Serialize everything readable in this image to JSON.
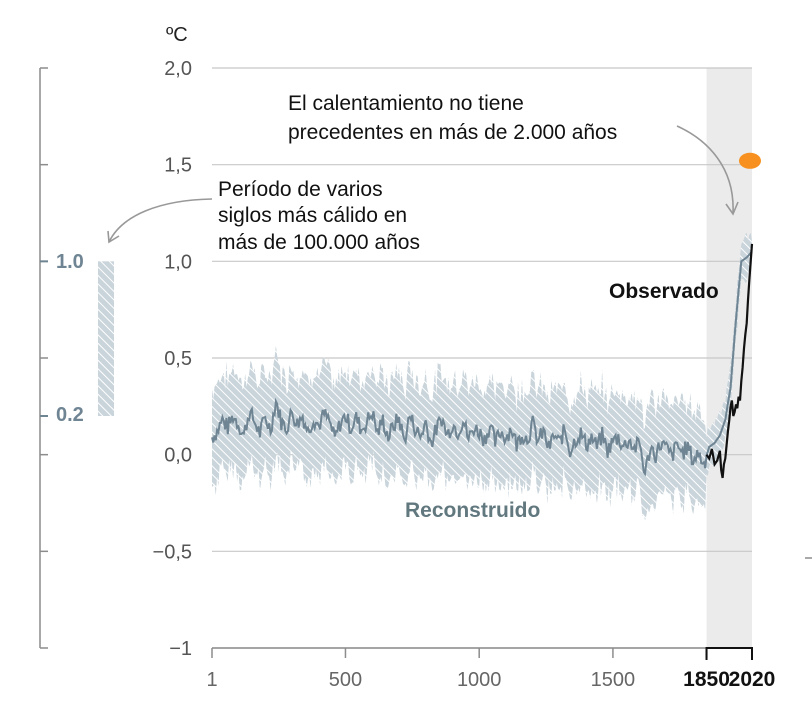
{
  "chart_data": {
    "type": "line",
    "unit": "ºC",
    "y_ticks": [
      2.0,
      1.5,
      1.0,
      0.5,
      0.0,
      -0.5,
      -1
    ],
    "y_tick_labels": [
      "2,0",
      "1,5",
      "1,0",
      "0,5",
      "0,0",
      "−0,5",
      "−1"
    ],
    "ylim": [
      -1,
      2
    ],
    "xlim": [
      1,
      2020
    ],
    "x_ticks": [
      1,
      500,
      1000,
      1500,
      1850,
      2020
    ],
    "x_tick_labels": [
      "1",
      "500",
      "1000",
      "1500",
      "1850",
      "2020"
    ],
    "x_bold_ticks": [
      "1850",
      "2020"
    ],
    "shaded_period": [
      1850,
      2020
    ],
    "series": [
      {
        "name": "Reconstruido",
        "color": "#6f8593",
        "x": [
          1,
          20,
          40,
          60,
          80,
          100,
          120,
          140,
          160,
          180,
          200,
          220,
          240,
          260,
          280,
          300,
          320,
          340,
          360,
          380,
          400,
          420,
          440,
          460,
          480,
          500,
          520,
          540,
          560,
          580,
          600,
          620,
          640,
          660,
          680,
          700,
          720,
          740,
          760,
          780,
          800,
          820,
          840,
          860,
          880,
          900,
          920,
          940,
          960,
          980,
          1000,
          1020,
          1040,
          1060,
          1080,
          1100,
          1120,
          1140,
          1160,
          1180,
          1200,
          1220,
          1240,
          1260,
          1280,
          1300,
          1320,
          1340,
          1360,
          1380,
          1400,
          1420,
          1440,
          1460,
          1480,
          1500,
          1520,
          1540,
          1560,
          1580,
          1600,
          1620,
          1640,
          1660,
          1680,
          1700,
          1720,
          1740,
          1760,
          1780,
          1800,
          1820,
          1840,
          1860,
          1880,
          1900,
          1920,
          1940,
          1960,
          1980,
          2000,
          2020
        ],
        "values": [
          0.09,
          0.12,
          0.18,
          0.14,
          0.2,
          0.16,
          0.1,
          0.22,
          0.17,
          0.11,
          0.19,
          0.13,
          0.28,
          0.17,
          0.14,
          0.22,
          0.16,
          0.2,
          0.12,
          0.19,
          0.15,
          0.21,
          0.17,
          0.08,
          0.16,
          0.2,
          0.14,
          0.19,
          0.13,
          0.17,
          0.22,
          0.11,
          0.18,
          0.09,
          0.15,
          0.19,
          0.07,
          0.2,
          0.14,
          0.09,
          0.17,
          0.06,
          0.13,
          0.19,
          0.1,
          0.16,
          0.12,
          0.18,
          0.08,
          0.14,
          0.12,
          0.08,
          0.15,
          0.06,
          0.12,
          0.09,
          0.14,
          0.05,
          0.11,
          0.08,
          0.16,
          0.07,
          0.12,
          0.03,
          0.1,
          0.06,
          0.13,
          0.02,
          0.08,
          0.11,
          0.05,
          0.09,
          0.04,
          0.1,
          0.02,
          0.07,
          0.09,
          0.04,
          0.08,
          0.03,
          0.06,
          -0.1,
          0.04,
          0.0,
          0.06,
          0.03,
          -0.01,
          0.05,
          0.01,
          0.04,
          -0.03,
          0.01,
          -0.05,
          0.04,
          0.06,
          0.1,
          0.18,
          0.35,
          0.7,
          1.0,
          1.02,
          1.05
        ]
      },
      {
        "name": "Observado",
        "color": "#111111",
        "x": [
          1850,
          1860,
          1870,
          1880,
          1890,
          1900,
          1905,
          1910,
          1915,
          1920,
          1925,
          1930,
          1935,
          1940,
          1945,
          1950,
          1955,
          1960,
          1965,
          1970,
          1975,
          1980,
          1985,
          1990,
          1995,
          2000,
          2005,
          2010,
          2015,
          2020
        ],
        "values": [
          0.0,
          -0.02,
          0.03,
          -0.05,
          -0.03,
          0.02,
          -0.08,
          -0.12,
          -0.05,
          -0.02,
          0.05,
          0.12,
          0.18,
          0.25,
          0.28,
          0.2,
          0.22,
          0.26,
          0.24,
          0.3,
          0.28,
          0.38,
          0.45,
          0.55,
          0.62,
          0.68,
          0.8,
          0.9,
          1.0,
          1.09
        ]
      }
    ],
    "band": {
      "name": "Reconstruido (intervalo)",
      "lower_offset": -0.22,
      "upper_offset": 0.22
    },
    "highlight_point": {
      "x": 2020,
      "y": 1.52,
      "color": "#f7901e"
    },
    "side_bar": {
      "low": 0.2,
      "high": 1.0,
      "labels": [
        "1.0",
        "0.2"
      ]
    },
    "labels": {
      "observed": "Observado",
      "reconstructed": "Reconstruido",
      "anno_right_line1": "El calentamiento no tiene",
      "anno_right_line2": "precedentes en más de 2.000 años",
      "anno_left_line1": "Período de varios",
      "anno_left_line2": "siglos más cálido en",
      "anno_left_line3": "más de 100.000 años"
    },
    "colors": {
      "shade": "#ebebeb",
      "band_hatch": "#b5c3cc",
      "grid": "#c8c8c8",
      "axis": "#8c8c8c"
    }
  }
}
